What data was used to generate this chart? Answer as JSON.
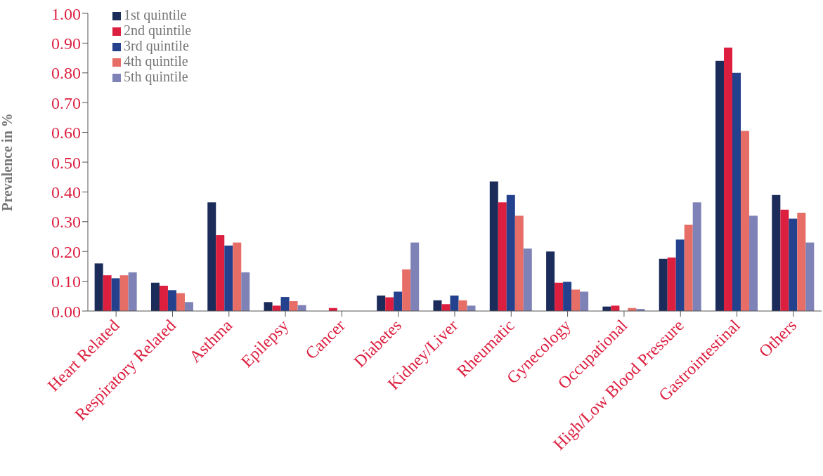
{
  "chart_data": {
    "type": "bar",
    "ylabel": "Prevalence in %",
    "categories": [
      "Heart Related",
      "Respiratory Related",
      "Asthma",
      "Epilepsy",
      "Cancer",
      "Diabetes",
      "Kidney/Liver",
      "Rheumatic",
      "Gynecology",
      "Occupational",
      "High/Low Blood Pressure",
      "Gastrointestinal",
      "Others"
    ],
    "series": [
      {
        "name": "1st quintile",
        "color": "#1b2b5a",
        "values": [
          0.16,
          0.095,
          0.365,
          0.03,
          null,
          0.052,
          0.036,
          0.435,
          0.2,
          0.015,
          0.175,
          0.84,
          0.39
        ]
      },
      {
        "name": "2nd quintile",
        "color": "#dc1f3f",
        "values": [
          0.12,
          0.085,
          0.255,
          0.018,
          0.01,
          0.046,
          0.023,
          0.365,
          0.095,
          0.018,
          0.18,
          0.885,
          0.34
        ]
      },
      {
        "name": "3rd quintile",
        "color": "#23418c",
        "values": [
          0.11,
          0.07,
          0.22,
          0.047,
          null,
          0.065,
          0.052,
          0.39,
          0.098,
          null,
          0.24,
          0.8,
          0.31
        ]
      },
      {
        "name": "4th quintile",
        "color": "#e66e66",
        "values": [
          0.12,
          0.06,
          0.23,
          0.033,
          null,
          0.14,
          0.036,
          0.32,
          0.072,
          0.01,
          0.29,
          0.605,
          0.33
        ]
      },
      {
        "name": "5th quintile",
        "color": "#7f82b6",
        "values": [
          0.13,
          0.03,
          0.13,
          0.02,
          null,
          0.23,
          0.018,
          0.21,
          0.065,
          0.007,
          0.365,
          0.32,
          0.23
        ]
      }
    ],
    "ylim": [
      0,
      1
    ],
    "yticks": [
      {
        "value": 0,
        "label": "0.00"
      },
      {
        "value": 0.1,
        "label": "0.10"
      },
      {
        "value": 0.2,
        "label": "0.20"
      },
      {
        "value": 0.3,
        "label": "0.30"
      },
      {
        "value": 0.4,
        "label": "0.40"
      },
      {
        "value": 0.5,
        "label": "0.50"
      },
      {
        "value": 0.6,
        "label": "0.60"
      },
      {
        "value": 0.7,
        "label": "0.70"
      },
      {
        "value": 0.8,
        "label": "0.80"
      },
      {
        "value": 0.9,
        "label": "0.90"
      },
      {
        "value": 1,
        "label": "1.00"
      }
    ],
    "grid": false,
    "legend": "top left"
  }
}
